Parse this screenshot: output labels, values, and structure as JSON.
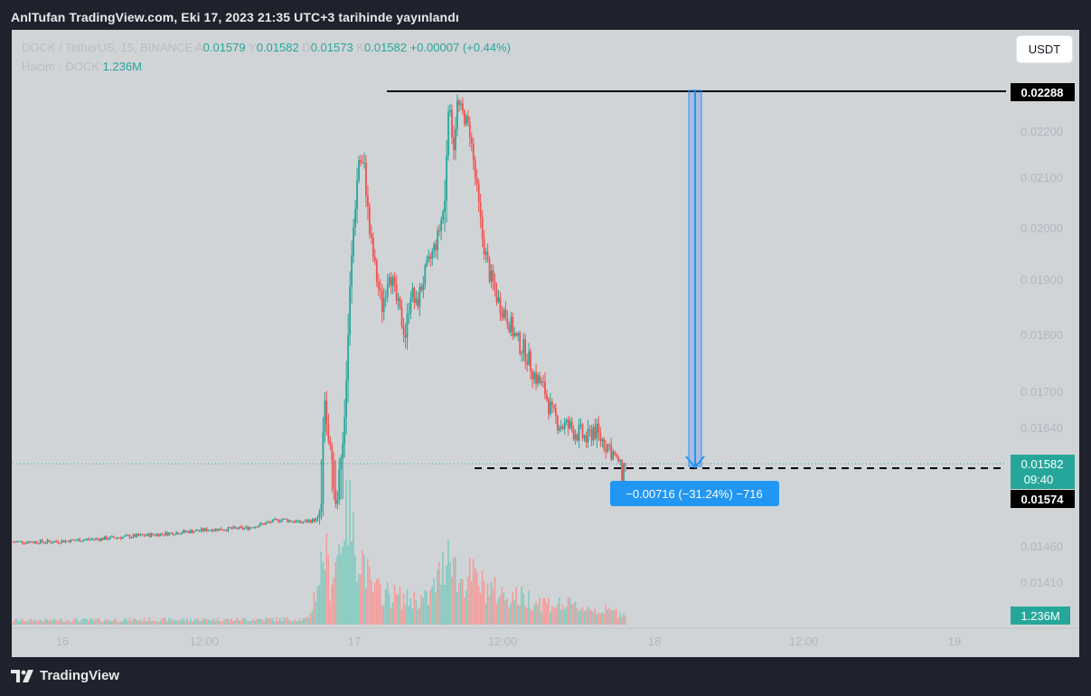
{
  "header": {
    "published_text": "AnlTufan TradingView.com, Eki 17, 2023 21:35 UTC+3 tarihinde yayınlandı"
  },
  "legend": {
    "symbol": "DOCK / TetherUS, 15, BINANCE",
    "open_label": "A",
    "open": "0.01579",
    "high_label": "Y",
    "high": "0.01582",
    "low_label": "D",
    "low": "0.01573",
    "close_label": "K",
    "close": "0.01582",
    "change": "+0.00007 (+0.44%)",
    "volume_label": "Hacim · DOCK",
    "volume": "1.236M"
  },
  "currency_button": "USDT",
  "footer": {
    "brand": "TradingView"
  },
  "colors": {
    "up": "#26a69a",
    "down": "#ef5350",
    "measure": "#2962ff",
    "background": "#d1d4d7"
  },
  "chart_data": {
    "type": "candlestick",
    "y_ticks": [
      "0.02200",
      "0.02100",
      "0.02000",
      "0.01900",
      "0.01800",
      "0.01700",
      "0.01640",
      "0.01460",
      "0.01410"
    ],
    "x_ticks": [
      "16",
      "12:00",
      "17",
      "12:00",
      "18",
      "12:00",
      "19"
    ],
    "price_labels": {
      "high_line": "0.02288",
      "last_price": "0.01582",
      "countdown": "09:40",
      "low_line": "0.01574",
      "volume": "1.236M"
    },
    "measure_label": "−0.00716 (−31.24%) −716",
    "anchors": [
      {
        "t": 0,
        "p": 0.0147
      },
      {
        "t": 20,
        "p": 0.0147
      },
      {
        "t": 50,
        "p": 0.01478
      },
      {
        "t": 80,
        "p": 0.01488
      },
      {
        "t": 110,
        "p": 0.015
      },
      {
        "t": 130,
        "p": 0.01503
      },
      {
        "t": 150,
        "p": 0.01525
      },
      {
        "t": 160,
        "p": 0.01517
      },
      {
        "t": 167,
        "p": 0.01522
      },
      {
        "t": 170,
        "p": 0.01525
      },
      {
        "t": 172,
        "p": 0.01555
      },
      {
        "t": 174,
        "p": 0.0168
      },
      {
        "t": 176,
        "p": 0.0161
      },
      {
        "t": 179,
        "p": 0.0156
      },
      {
        "t": 184,
        "p": 0.0161
      },
      {
        "t": 186,
        "p": 0.0172
      },
      {
        "t": 188,
        "p": 0.0188
      },
      {
        "t": 190,
        "p": 0.02
      },
      {
        "t": 193,
        "p": 0.0214
      },
      {
        "t": 196,
        "p": 0.0212
      },
      {
        "t": 199,
        "p": 0.0199
      },
      {
        "t": 203,
        "p": 0.019
      },
      {
        "t": 206,
        "p": 0.0185
      },
      {
        "t": 210,
        "p": 0.0192
      },
      {
        "t": 214,
        "p": 0.0186
      },
      {
        "t": 219,
        "p": 0.018
      },
      {
        "t": 222,
        "p": 0.0188
      },
      {
        "t": 225,
        "p": 0.0185
      },
      {
        "t": 229,
        "p": 0.019
      },
      {
        "t": 233,
        "p": 0.0194
      },
      {
        "t": 237,
        "p": 0.0198
      },
      {
        "t": 241,
        "p": 0.0205
      },
      {
        "t": 243,
        "p": 0.0226
      },
      {
        "t": 246,
        "p": 0.0217
      },
      {
        "t": 248,
        "p": 0.0226
      },
      {
        "t": 252,
        "p": 0.0223
      },
      {
        "t": 255,
        "p": 0.022
      },
      {
        "t": 258,
        "p": 0.021
      },
      {
        "t": 262,
        "p": 0.0198
      },
      {
        "t": 266,
        "p": 0.0191
      },
      {
        "t": 271,
        "p": 0.0186
      },
      {
        "t": 276,
        "p": 0.0183
      },
      {
        "t": 281,
        "p": 0.0179
      },
      {
        "t": 286,
        "p": 0.0177
      },
      {
        "t": 291,
        "p": 0.0173
      },
      {
        "t": 297,
        "p": 0.017
      },
      {
        "t": 301,
        "p": 0.0166
      },
      {
        "t": 306,
        "p": 0.01645
      },
      {
        "t": 311,
        "p": 0.0164
      },
      {
        "t": 316,
        "p": 0.0163
      },
      {
        "t": 321,
        "p": 0.0162
      },
      {
        "t": 324,
        "p": 0.0164
      },
      {
        "t": 327,
        "p": 0.01625
      },
      {
        "t": 331,
        "p": 0.01615
      },
      {
        "t": 334,
        "p": 0.01605
      },
      {
        "t": 337,
        "p": 0.0159
      },
      {
        "t": 340,
        "p": 0.0158
      },
      {
        "t": 342,
        "p": 0.01582
      }
    ],
    "volume_anchors": [
      {
        "t": 0,
        "v": 0.03
      },
      {
        "t": 165,
        "v": 0.04
      },
      {
        "t": 171,
        "v": 0.35
      },
      {
        "t": 174,
        "v": 0.55
      },
      {
        "t": 177,
        "v": 0.3
      },
      {
        "t": 182,
        "v": 0.55
      },
      {
        "t": 186,
        "v": 0.95
      },
      {
        "t": 190,
        "v": 0.6
      },
      {
        "t": 196,
        "v": 0.45
      },
      {
        "t": 200,
        "v": 0.25
      },
      {
        "t": 210,
        "v": 0.22
      },
      {
        "t": 220,
        "v": 0.18
      },
      {
        "t": 232,
        "v": 0.18
      },
      {
        "t": 240,
        "v": 0.4
      },
      {
        "t": 244,
        "v": 0.65
      },
      {
        "t": 248,
        "v": 0.3
      },
      {
        "t": 256,
        "v": 0.35
      },
      {
        "t": 262,
        "v": 0.28
      },
      {
        "t": 272,
        "v": 0.22
      },
      {
        "t": 290,
        "v": 0.18
      },
      {
        "t": 300,
        "v": 0.15
      },
      {
        "t": 320,
        "v": 0.12
      },
      {
        "t": 342,
        "v": 0.08
      }
    ]
  }
}
